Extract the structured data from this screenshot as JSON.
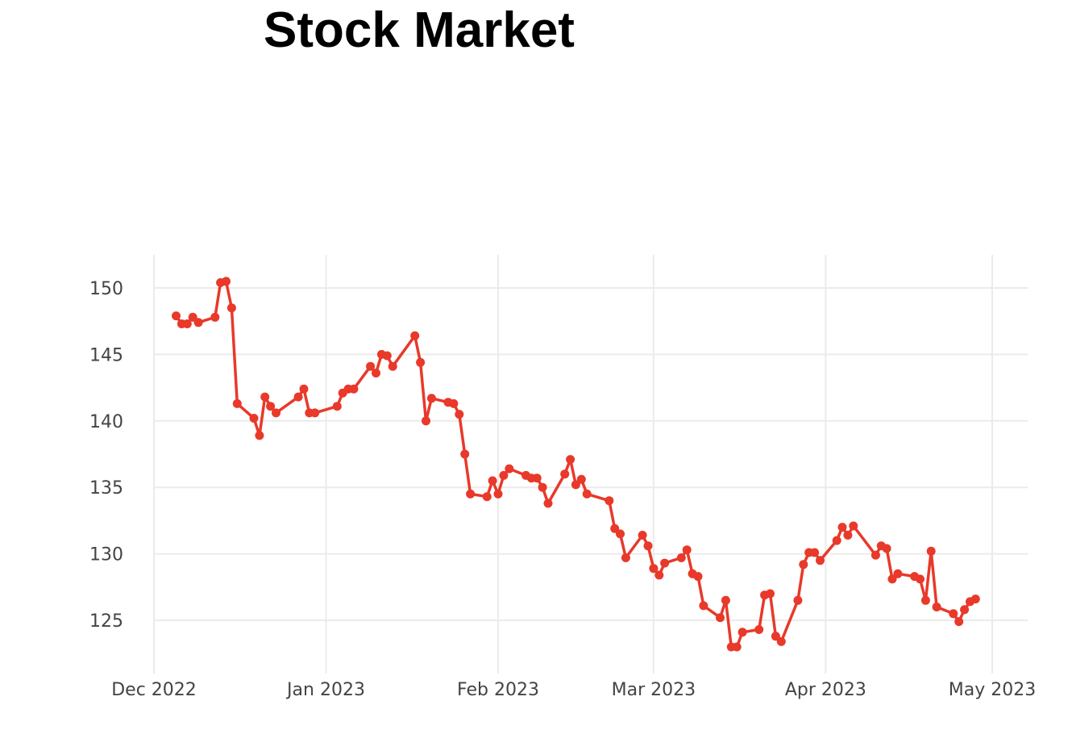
{
  "chart_data": {
    "type": "line",
    "title": "Stock Market",
    "xlabel": "",
    "ylabel": "",
    "grid": true,
    "legend": "none",
    "color": "#e8392a",
    "x_ticks": [
      "2022-12-01",
      "2023-01-01",
      "2023-02-01",
      "2023-03-01",
      "2023-04-01",
      "2023-05-01"
    ],
    "x_tick_labels": [
      "Dec 2022",
      "Jan 2023",
      "Feb 2023",
      "Mar 2023",
      "Apr 2023",
      "May 2023"
    ],
    "y_ticks": [
      125,
      130,
      135,
      140,
      145,
      150
    ],
    "y_tick_labels": [
      "125",
      "130",
      "135",
      "140",
      "145",
      "150"
    ],
    "xlim": [
      "2022-11-30",
      "2023-05-07"
    ],
    "ylim": [
      122,
      152.5
    ],
    "series": [
      {
        "x": [
          "2022-12-05",
          "2022-12-06",
          "2022-12-07",
          "2022-12-08",
          "2022-12-09",
          "2022-12-12",
          "2022-12-13",
          "2022-12-14",
          "2022-12-15",
          "2022-12-16",
          "2022-12-19",
          "2022-12-20",
          "2022-12-21",
          "2022-12-22",
          "2022-12-23",
          "2022-12-27",
          "2022-12-28",
          "2022-12-29",
          "2022-12-30",
          "2023-01-03",
          "2023-01-04",
          "2023-01-05",
          "2023-01-06",
          "2023-01-09",
          "2023-01-10",
          "2023-01-11",
          "2023-01-12",
          "2023-01-13",
          "2023-01-17",
          "2023-01-18",
          "2023-01-19",
          "2023-01-20",
          "2023-01-23",
          "2023-01-24",
          "2023-01-25",
          "2023-01-26",
          "2023-01-27",
          "2023-01-30",
          "2023-01-31",
          "2023-02-01",
          "2023-02-02",
          "2023-02-03",
          "2023-02-06",
          "2023-02-07",
          "2023-02-08",
          "2023-02-09",
          "2023-02-10",
          "2023-02-13",
          "2023-02-14",
          "2023-02-15",
          "2023-02-16",
          "2023-02-17",
          "2023-02-21",
          "2023-02-22",
          "2023-02-23",
          "2023-02-24",
          "2023-02-27",
          "2023-02-28",
          "2023-03-01",
          "2023-03-02",
          "2023-03-03",
          "2023-03-06",
          "2023-03-07",
          "2023-03-08",
          "2023-03-09",
          "2023-03-10",
          "2023-03-13",
          "2023-03-14",
          "2023-03-15",
          "2023-03-16",
          "2023-03-17",
          "2023-03-20",
          "2023-03-21",
          "2023-03-22",
          "2023-03-23",
          "2023-03-24",
          "2023-03-27",
          "2023-03-28",
          "2023-03-29",
          "2023-03-30",
          "2023-03-31",
          "2023-04-03",
          "2023-04-04",
          "2023-04-05",
          "2023-04-06",
          "2023-04-10",
          "2023-04-11",
          "2023-04-12",
          "2023-04-13",
          "2023-04-14",
          "2023-04-17",
          "2023-04-18",
          "2023-04-19",
          "2023-04-20",
          "2023-04-21",
          "2023-04-24",
          "2023-04-25",
          "2023-04-26",
          "2023-04-27",
          "2023-04-28"
        ],
        "y": [
          147.9,
          147.3,
          147.3,
          147.8,
          147.4,
          147.8,
          150.4,
          150.5,
          148.5,
          141.3,
          140.2,
          138.9,
          141.8,
          141.1,
          140.6,
          141.8,
          142.4,
          140.6,
          140.6,
          141.1,
          142.1,
          142.4,
          142.4,
          144.1,
          143.6,
          145.0,
          144.9,
          144.1,
          146.4,
          144.4,
          140.0,
          141.7,
          141.4,
          141.3,
          140.5,
          137.5,
          134.5,
          134.3,
          135.5,
          134.5,
          135.9,
          136.4,
          135.9,
          135.7,
          135.7,
          135.0,
          133.8,
          136.0,
          137.1,
          135.2,
          135.6,
          134.5,
          134.0,
          131.9,
          131.5,
          129.7,
          131.4,
          130.6,
          128.9,
          128.4,
          129.3,
          129.7,
          130.3,
          128.5,
          128.3,
          126.1,
          125.2,
          126.5,
          123.0,
          123.0,
          124.1,
          124.3,
          126.9,
          127.0,
          123.8,
          123.4,
          126.5,
          129.2,
          130.1,
          130.1,
          129.5,
          131.0,
          132.0,
          131.4,
          132.1,
          129.9,
          130.6,
          130.4,
          128.1,
          128.5,
          128.3,
          128.1,
          126.5,
          130.2,
          126.0,
          125.5,
          124.9,
          125.8,
          126.4,
          126.6
        ]
      }
    ]
  }
}
